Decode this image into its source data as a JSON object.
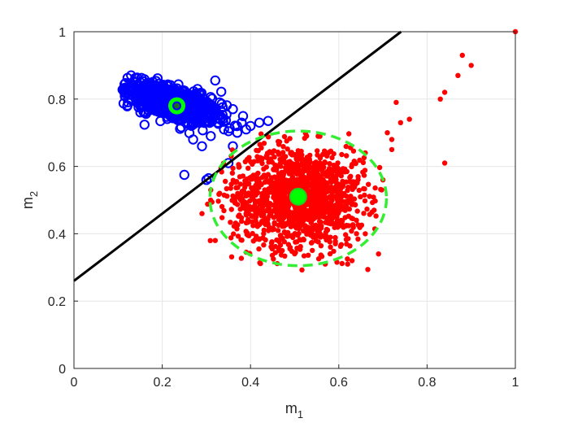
{
  "chart_data": {
    "type": "scatter",
    "title": "",
    "xlabel": {
      "base": "m",
      "subscript": "1"
    },
    "ylabel": {
      "base": "m",
      "subscript": "2"
    },
    "xlim": [
      0,
      1
    ],
    "ylim": [
      0,
      1
    ],
    "xticks": [
      0,
      0.2,
      0.4,
      0.6,
      0.8,
      1
    ],
    "yticks": [
      0,
      0.2,
      0.4,
      0.6,
      0.8,
      1
    ],
    "xtick_labels": [
      "0",
      "0.2",
      "0.4",
      "0.6",
      "0.8",
      "1"
    ],
    "ytick_labels": [
      "0",
      "0.2",
      "0.4",
      "0.6",
      "0.8",
      "1"
    ],
    "grid": true,
    "legend": false,
    "series": [
      {
        "marker": "open-circle",
        "color": "#0000ff",
        "cluster": {
          "center": [
            0.22,
            0.79
          ],
          "x_range": [
            0.11,
            0.41
          ],
          "y_range": [
            0.57,
            0.88
          ],
          "approx_count": 900
        },
        "outliers": [
          [
            0.25,
            0.575
          ],
          [
            0.305,
            0.565
          ],
          [
            0.3,
            0.56
          ],
          [
            0.35,
            0.61
          ],
          [
            0.36,
            0.66
          ],
          [
            0.34,
            0.71
          ],
          [
            0.37,
            0.7
          ],
          [
            0.4,
            0.72
          ],
          [
            0.36,
            0.77
          ],
          [
            0.33,
            0.79
          ],
          [
            0.32,
            0.76
          ],
          [
            0.38,
            0.73
          ],
          [
            0.42,
            0.73
          ],
          [
            0.44,
            0.735
          ],
          [
            0.39,
            0.71
          ],
          [
            0.28,
            0.83
          ],
          [
            0.32,
            0.855
          ],
          [
            0.29,
            0.66
          ],
          [
            0.27,
            0.68
          ],
          [
            0.31,
            0.69
          ]
        ]
      },
      {
        "marker": "filled-dot",
        "color": "#ff0000",
        "cluster": {
          "center": [
            0.51,
            0.51
          ],
          "x_range": [
            0.3,
            0.7
          ],
          "y_range": [
            0.29,
            0.7
          ],
          "approx_count": 1400
        },
        "outliers": [
          [
            0.29,
            0.46
          ],
          [
            0.32,
            0.38
          ],
          [
            0.62,
            0.31
          ],
          [
            0.63,
            0.32
          ],
          [
            0.69,
            0.34
          ],
          [
            0.7,
            0.56
          ],
          [
            0.72,
            0.68
          ],
          [
            0.72,
            0.65
          ],
          [
            0.74,
            0.73
          ],
          [
            0.76,
            0.74
          ],
          [
            0.73,
            0.79
          ],
          [
            0.83,
            0.8
          ],
          [
            0.84,
            0.82
          ],
          [
            0.84,
            0.61
          ],
          [
            0.87,
            0.87
          ],
          [
            0.88,
            0.93
          ],
          [
            0.9,
            0.9
          ],
          [
            1.0,
            1.0
          ],
          [
            0.66,
            0.64
          ],
          [
            0.71,
            0.7
          ],
          [
            0.31,
            0.53
          ],
          [
            0.33,
            0.52
          ],
          [
            0.64,
            0.44
          ],
          [
            0.68,
            0.47
          ],
          [
            0.66,
            0.4
          ]
        ]
      }
    ],
    "centroids": [
      {
        "point": [
          0.233,
          0.78
        ],
        "color": "#00ff00",
        "series": 0
      },
      {
        "point": [
          0.508,
          0.51
        ],
        "color": "#00ff00",
        "series": 1
      }
    ],
    "decision_line": {
      "color": "#000000",
      "points": [
        [
          0,
          0.26
        ],
        [
          0.741,
          1.0
        ]
      ]
    },
    "dashed_circle": {
      "center": [
        0.508,
        0.505
      ],
      "radius": 0.2,
      "color": "#33ee33"
    }
  }
}
